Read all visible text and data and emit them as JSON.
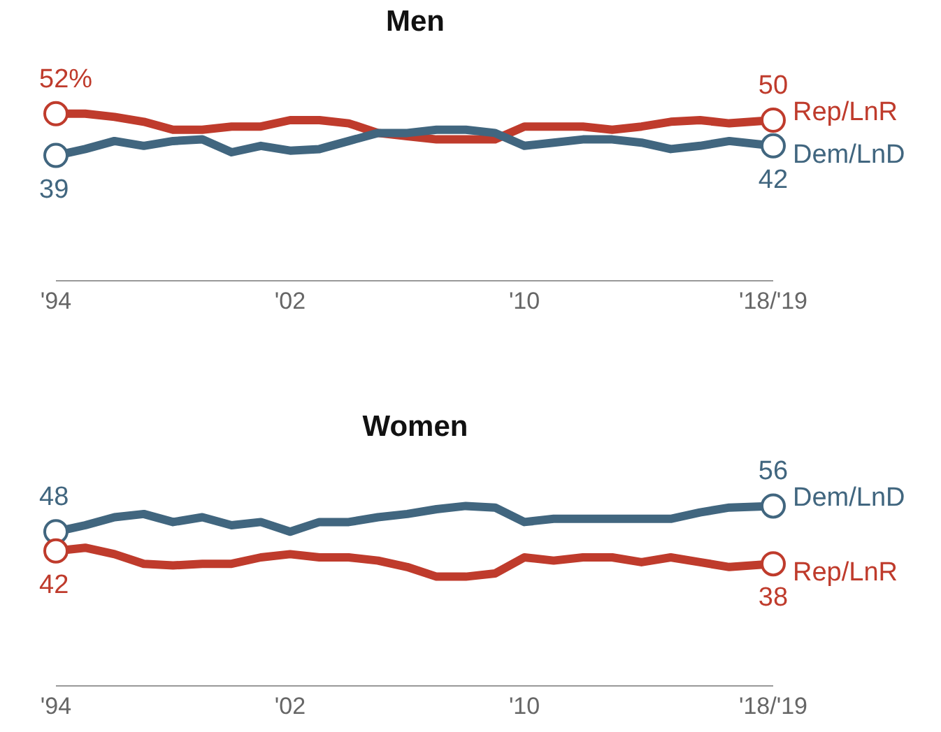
{
  "chart_data": [
    {
      "type": "line",
      "title": "Men",
      "x": [
        1994,
        1995,
        1996,
        1997,
        1998,
        1999,
        2000,
        2001,
        2002,
        2003,
        2004,
        2005,
        2006,
        2007,
        2008,
        2009,
        2010,
        2011,
        2012,
        2013,
        2014,
        2015,
        2016,
        2017,
        2018.5
      ],
      "xlim": [
        1994,
        2018.5
      ],
      "xticks": [
        {
          "value": 1994,
          "label": "'94"
        },
        {
          "value": 2002,
          "label": "'02"
        },
        {
          "value": 2010,
          "label": "'10"
        },
        {
          "value": 2018.5,
          "label": "'18/'19"
        }
      ],
      "line_style": "solid",
      "tick_labels": "x",
      "series": [
        {
          "name": "Rep/LnR",
          "color": "#bf3b2c",
          "values": [
            52,
            52,
            51,
            49.5,
            47,
            47,
            48,
            48,
            50,
            50,
            49,
            46,
            45,
            44,
            44,
            44,
            48,
            48,
            48,
            47,
            48,
            49.5,
            50,
            49,
            50
          ],
          "value_labels": [
            "52%",
            null,
            null,
            null,
            null,
            null,
            null,
            null,
            null,
            null,
            null,
            null,
            null,
            null,
            null,
            null,
            null,
            null,
            null,
            null,
            null,
            null,
            null,
            null,
            "50"
          ]
        },
        {
          "name": "Dem/LnD",
          "color": "#41667f",
          "values": [
            39,
            41,
            43.5,
            42,
            43.5,
            44,
            40,
            42,
            40.5,
            41,
            43.5,
            46,
            46,
            47,
            47,
            46,
            42,
            43,
            44,
            44,
            43,
            41,
            42,
            43.5,
            42
          ],
          "value_labels": [
            "39",
            null,
            null,
            null,
            null,
            null,
            null,
            null,
            null,
            null,
            null,
            null,
            null,
            null,
            null,
            null,
            null,
            null,
            null,
            null,
            null,
            null,
            null,
            null,
            "42"
          ]
        }
      ]
    },
    {
      "type": "line",
      "title": "Women",
      "x": [
        1994,
        1995,
        1996,
        1997,
        1998,
        1999,
        2000,
        2001,
        2002,
        2003,
        2004,
        2005,
        2006,
        2007,
        2008,
        2009,
        2010,
        2011,
        2012,
        2013,
        2014,
        2015,
        2016,
        2017,
        2018.5
      ],
      "xlim": [
        1994,
        2018.5
      ],
      "xticks": [
        {
          "value": 1994,
          "label": "'94"
        },
        {
          "value": 2002,
          "label": "'02"
        },
        {
          "value": 2010,
          "label": "'10"
        },
        {
          "value": 2018.5,
          "label": "'18/'19"
        }
      ],
      "line_style": "solid",
      "tick_labels": "x",
      "series": [
        {
          "name": "Dem/LnD",
          "color": "#41667f",
          "values": [
            48,
            50,
            52.5,
            53.5,
            51,
            52.5,
            50,
            51,
            48,
            51,
            51,
            52.5,
            53.5,
            55,
            56,
            55.5,
            51,
            52,
            52,
            52,
            52,
            52,
            54,
            55.5,
            56
          ],
          "value_labels": [
            "48",
            null,
            null,
            null,
            null,
            null,
            null,
            null,
            null,
            null,
            null,
            null,
            null,
            null,
            null,
            null,
            null,
            null,
            null,
            null,
            null,
            null,
            null,
            null,
            "56"
          ]
        },
        {
          "name": "Rep/LnR",
          "color": "#bf3b2c",
          "values": [
            42,
            43,
            41,
            38,
            37.5,
            38,
            38,
            40,
            41,
            40,
            40,
            39,
            37,
            34,
            34,
            35,
            40,
            39,
            40,
            40,
            38.5,
            40,
            38.5,
            37,
            38
          ],
          "value_labels": [
            "42",
            null,
            null,
            null,
            null,
            null,
            null,
            null,
            null,
            null,
            null,
            null,
            null,
            null,
            null,
            null,
            null,
            null,
            null,
            null,
            null,
            null,
            null,
            null,
            "38"
          ]
        }
      ]
    }
  ]
}
